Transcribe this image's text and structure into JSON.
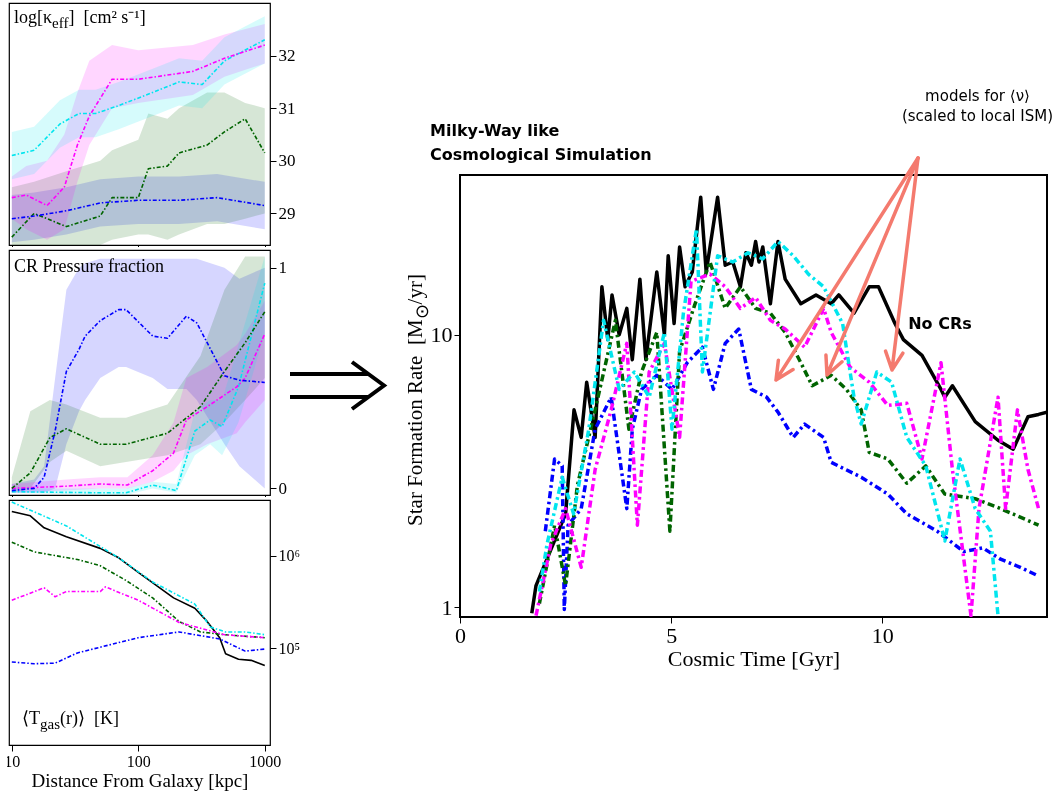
{
  "chart_data": [
    {
      "type": "line",
      "ylabel": "log[κ$_{eff}$]  [cm² s⁻¹]",
      "log": "x",
      "xlim": [
        9.5,
        1100
      ],
      "xticks": [
        10,
        100,
        1000
      ],
      "ylim": [
        28.4,
        33.0
      ],
      "yticks": [
        29,
        30,
        31,
        32
      ],
      "tick_labels": "y",
      "series": [
        {
          "color": "#00e5ee",
          "line_style": "dashed",
          "x": [
            10,
            15,
            24,
            34,
            46,
            70,
            130,
            210,
            320,
            480,
            1000
          ],
          "values": [
            30.1,
            30.2,
            30.7,
            30.9,
            30.9,
            31.05,
            31.3,
            31.5,
            31.45,
            31.9,
            32.3
          ],
          "lower": [
            29.65,
            29.75,
            30.25,
            30.45,
            30.45,
            30.6,
            30.85,
            31.05,
            31.0,
            31.45,
            31.85
          ],
          "upper": [
            30.55,
            30.65,
            31.15,
            31.35,
            31.35,
            31.5,
            31.75,
            31.95,
            31.9,
            32.35,
            32.75
          ]
        },
        {
          "color": "#ff00ff",
          "line_style": "dashed",
          "x": [
            10,
            13,
            19,
            26,
            33,
            41,
            62,
            100,
            270,
            480,
            1000
          ],
          "values": [
            29.3,
            29.35,
            29.15,
            29.5,
            30.3,
            30.85,
            31.55,
            31.55,
            31.7,
            31.95,
            32.2
          ],
          "lower": [
            28.9,
            28.7,
            28.5,
            28.7,
            29.6,
            30.3,
            31.0,
            31.1,
            31.25,
            31.6,
            31.85
          ],
          "upper": [
            29.7,
            29.9,
            30.0,
            30.5,
            31.3,
            31.9,
            32.2,
            32.1,
            32.2,
            32.4,
            32.6
          ]
        },
        {
          "color": "#006400",
          "line_style": "dashed",
          "x": [
            10,
            15,
            27,
            50,
            62,
            100,
            120,
            170,
            210,
            350,
            480,
            700,
            1000
          ],
          "values": [
            28.55,
            29.0,
            28.75,
            28.95,
            29.3,
            29.3,
            29.85,
            29.9,
            30.15,
            30.3,
            30.55,
            30.8,
            30.15
          ],
          "lower": [
            28.4,
            28.4,
            28.4,
            28.4,
            28.5,
            28.6,
            28.6,
            28.5,
            28.6,
            28.8,
            28.8,
            28.9,
            29.0
          ],
          "upper": [
            29.5,
            29.6,
            29.8,
            30.0,
            30.2,
            30.4,
            30.9,
            30.8,
            31.0,
            31.3,
            31.3,
            31.1,
            31.0
          ]
        },
        {
          "color": "#0000ff",
          "line_style": "dashed",
          "x": [
            10,
            15,
            27,
            50,
            100,
            210,
            420,
            1000
          ],
          "values": [
            28.9,
            28.95,
            29.05,
            29.2,
            29.25,
            29.25,
            29.3,
            29.15
          ],
          "lower": [
            28.45,
            28.5,
            28.6,
            28.75,
            28.8,
            28.8,
            28.85,
            28.7
          ],
          "upper": [
            29.35,
            29.4,
            29.5,
            29.65,
            29.7,
            29.7,
            29.75,
            29.6
          ]
        }
      ]
    },
    {
      "type": "line",
      "ylabel": "CR Pressure fraction",
      "log": "x",
      "xlim": [
        9.5,
        1100
      ],
      "xticks": [
        10,
        100,
        1000
      ],
      "ylim": [
        -0.03,
        1.08
      ],
      "yticks": [
        0,
        1
      ],
      "tick_labels": "y",
      "series": [
        {
          "color": "#00e5ee",
          "line_style": "dashed",
          "x": [
            10,
            50,
            80,
            130,
            200,
            280,
            370,
            460,
            620,
            1000
          ],
          "values": [
            -0.015,
            -0.02,
            -0.02,
            0.015,
            -0.01,
            0.26,
            0.31,
            0.28,
            0.46,
            0.93
          ],
          "lower": [
            -0.02,
            -0.03,
            -0.03,
            0,
            -0.02,
            0.15,
            0.2,
            0.15,
            0.3,
            0.7
          ],
          "upper": [
            0,
            0,
            0,
            0.03,
            0.02,
            0.35,
            0.4,
            0.4,
            0.65,
            1.05
          ]
        },
        {
          "color": "#ff00ff",
          "line_style": "dashed",
          "x": [
            10,
            27,
            50,
            82,
            130,
            190,
            240,
            350,
            600,
            700,
            1000
          ],
          "values": [
            0,
            0.01,
            0.02,
            0.015,
            0.08,
            0.16,
            0.31,
            0.37,
            0.46,
            0.5,
            0.7
          ],
          "lower": [
            -0.02,
            -0.01,
            0,
            0,
            0.03,
            0.08,
            0.15,
            0.2,
            0.25,
            0.3,
            0.4
          ],
          "upper": [
            0.02,
            0.04,
            0.05,
            0.05,
            0.15,
            0.3,
            0.5,
            0.55,
            0.65,
            0.7,
            0.85
          ]
        },
        {
          "color": "#006400",
          "line_style": "dashed",
          "x": [
            10,
            14,
            20,
            27,
            50,
            80,
            170,
            310,
            480,
            700,
            1000
          ],
          "values": [
            0,
            0.07,
            0.23,
            0.27,
            0.2,
            0.2,
            0.25,
            0.37,
            0.53,
            0.66,
            0.8
          ],
          "lower": [
            -0.02,
            0,
            0.12,
            0.17,
            0.1,
            0.12,
            0.15,
            0.2,
            0.3,
            0.4,
            0.5
          ],
          "upper": [
            0.05,
            0.35,
            0.4,
            0.38,
            0.32,
            0.32,
            0.38,
            0.6,
            0.9,
            1.05,
            1.05
          ]
        },
        {
          "color": "#0000ff",
          "line_style": "dashed",
          "x": [
            10,
            15,
            18,
            22,
            27,
            34,
            38,
            50,
            70,
            80,
            130,
            170,
            240,
            290,
            480,
            630,
            1000
          ],
          "values": [
            -0.01,
            0,
            0.05,
            0.26,
            0.53,
            0.63,
            0.69,
            0.76,
            0.81,
            0.81,
            0.69,
            0.68,
            0.78,
            0.75,
            0.51,
            0.49,
            0.48
          ],
          "lower": [
            -0.02,
            -0.02,
            -0.02,
            0.0,
            0.2,
            0.35,
            0.4,
            0.5,
            0.55,
            0.55,
            0.5,
            0.45,
            0.45,
            0.4,
            0.2,
            0.1,
            0.0
          ],
          "upper": [
            0.02,
            0.04,
            0.1,
            0.5,
            0.9,
            1.0,
            1.02,
            1.04,
            1.04,
            1.04,
            1.04,
            1.04,
            1.04,
            1.04,
            1.0,
            0.95,
            1.0
          ]
        }
      ]
    },
    {
      "type": "line",
      "xlabel": "Distance From Galaxy  [kpc]",
      "ylabel": "⟨T$_{gas}$(r)⟩  [K]",
      "log": "xy",
      "xlim": [
        9.5,
        1100
      ],
      "xticks": [
        10,
        100,
        1000
      ],
      "ylim": [
        9000,
        4000000
      ],
      "yticks": [
        {
          "value": 100000,
          "label": "10⁵"
        },
        {
          "value": 1000000,
          "label": "10⁶"
        }
      ],
      "series": [
        {
          "color": "#000000",
          "line_style": "solid",
          "x": [
            10,
            14,
            18,
            27,
            50,
            70,
            100,
            190,
            280,
            350,
            440,
            490,
            620,
            780,
            1000
          ],
          "values": [
            3000000,
            2700000,
            2000000,
            1600000,
            1200000,
            950000,
            660000,
            350000,
            270000,
            195000,
            130000,
            87000,
            76000,
            74000,
            65000
          ]
        },
        {
          "color": "#00e5ee",
          "line_style": "dashed",
          "x": [
            10,
            27,
            70,
            130,
            280,
            370,
            490,
            700,
            1000
          ],
          "values": [
            3800000,
            2100000,
            950000,
            520000,
            300000,
            170000,
            150000,
            150000,
            140000
          ]
        },
        {
          "color": "#006400",
          "line_style": "dashed",
          "x": [
            10,
            15,
            33,
            50,
            80,
            130,
            210,
            310,
            480,
            1000
          ],
          "values": [
            1400000,
            1100000,
            910000,
            780000,
            540000,
            350000,
            195000,
            150000,
            140000,
            130000
          ]
        },
        {
          "color": "#ff00ff",
          "line_style": "dashed",
          "x": [
            10,
            18,
            22,
            27,
            50,
            55,
            100,
            210,
            480,
            1000
          ],
          "values": [
            330000,
            450000,
            360000,
            410000,
            410000,
            460000,
            330000,
            190000,
            140000,
            130000
          ]
        },
        {
          "color": "#0000ff",
          "line_style": "dashed",
          "x": [
            10,
            15,
            22,
            33,
            100,
            210,
            440,
            700,
            1000
          ],
          "values": [
            71000,
            68000,
            69000,
            89000,
            130000,
            150000,
            126000,
            93000,
            98000
          ]
        }
      ]
    },
    {
      "type": "line",
      "title": "Milky-Way like",
      "subtitle": "Cosmological Simulation",
      "xlabel": "Cosmic Time [Gyr]",
      "ylabel": "Star Formation Rate  [M$_{⊙}$/yr]",
      "log": "y",
      "xlim": [
        0,
        13.9
      ],
      "xticks": [
        0,
        5,
        10
      ],
      "ylim": [
        0.92,
        38.6
      ],
      "yticks": [
        1,
        10
      ],
      "annotations": [
        "No CRs",
        "models for ⟨ν⟩ (scaled to local ISM)"
      ],
      "series": [
        {
          "color": "#000000",
          "line_style": "solid",
          "x": [
            1.7,
            1.8,
            2.5,
            2.7,
            2.87,
            3.0,
            3.2,
            3.36,
            3.5,
            3.6,
            3.77,
            3.95,
            4.08,
            4.26,
            4.4,
            4.66,
            4.84,
            4.93,
            5.07,
            5.2,
            5.33,
            5.5,
            5.7,
            5.83,
            6.1,
            6.28,
            6.46,
            6.64,
            6.77,
            6.9,
            7.0,
            7.08,
            7.17,
            7.35,
            7.53,
            7.7,
            8.07,
            8.43,
            8.79,
            8.97,
            9.33,
            9.69,
            9.91,
            10.3,
            10.5,
            10.94,
            11.39,
            11.48,
            11.66,
            12.2,
            12.74,
            13.1,
            13.45,
            13.7,
            13.9
          ],
          "values": [
            0.95,
            1.2,
            2.2,
            5.3,
            4.2,
            6.7,
            4.2,
            15,
            9.6,
            14,
            10,
            12.5,
            8.1,
            16,
            8.1,
            17,
            10,
            19.5,
            11,
            21,
            15,
            17,
            32,
            17,
            32,
            18,
            18.5,
            15,
            20,
            18,
            22,
            18.5,
            21,
            13,
            22,
            16,
            13,
            14,
            13,
            14,
            12,
            15,
            15,
            11,
            9.6,
            8.4,
            6.3,
            5.9,
            6.5,
            4.8,
            4.1,
            3.8,
            5.0,
            5.1,
            5.2
          ]
        },
        {
          "color": "#0000ff",
          "line_style": "dashed",
          "x": [
            2.02,
            2.24,
            2.42,
            2.47,
            2.56,
            2.87,
            3.2,
            3.58,
            3.95,
            4.08,
            4.3,
            4.66,
            5.02,
            5.38,
            5.74,
            6.0,
            6.28,
            6.6,
            6.9,
            7.26,
            7.53,
            7.89,
            8.16,
            8.61,
            8.79,
            9.5,
            10.13,
            10.58,
            11.3,
            11.93,
            12.38,
            12.8,
            13.27,
            13.7
          ],
          "values": [
            1.9,
            3.5,
            3.3,
            0.98,
            2.0,
            2.3,
            4.5,
            5.9,
            2.3,
            4.5,
            6.3,
            7.1,
            6.3,
            7.9,
            9.0,
            6.3,
            9.3,
            10.5,
            6.3,
            5.9,
            5.2,
            4.2,
            4.7,
            4.2,
            3.4,
            3.0,
            2.6,
            2.2,
            1.9,
            1.6,
            1.65,
            1.5,
            1.4,
            1.3
          ]
        },
        {
          "color": "#006400",
          "line_style": "dashed",
          "x": [
            1.88,
            2.24,
            2.5,
            2.78,
            3.2,
            3.68,
            4.0,
            4.3,
            4.66,
            4.97,
            5.2,
            5.56,
            5.92,
            6.28,
            6.64,
            7.0,
            7.35,
            7.7,
            8.07,
            8.34,
            8.79,
            9.15,
            9.5,
            9.69,
            10.13,
            10.58,
            11.03,
            11.48,
            12.2,
            12.8,
            13.7
          ],
          "values": [
            1.03,
            2.0,
            1.2,
            2.8,
            5.3,
            11.3,
            4.5,
            7.3,
            10.2,
            1.9,
            8.7,
            12.9,
            18.5,
            12.5,
            15,
            12.5,
            12,
            10.2,
            7.9,
            6.5,
            7.1,
            6.3,
            5.3,
            3.7,
            3.5,
            2.85,
            3.3,
            2.6,
            2.5,
            2.3,
            2.0
          ]
        },
        {
          "color": "#ff00ff",
          "line_style": "dashed",
          "x": [
            1.8,
            2.15,
            2.5,
            2.87,
            3.2,
            3.58,
            3.95,
            4.2,
            4.48,
            4.84,
            5.2,
            5.47,
            5.92,
            6.28,
            6.64,
            7.0,
            7.35,
            7.7,
            8.16,
            8.61,
            8.79,
            9.24,
            9.69,
            10.13,
            10.58,
            10.94,
            11.39,
            11.66,
            12.1,
            12.29,
            12.74,
            12.92,
            13.2,
            13.45,
            13.7
          ],
          "values": [
            0.93,
            1.7,
            2.3,
            1.4,
            3.2,
            5.3,
            9.3,
            2.0,
            7.3,
            9.3,
            4.2,
            15.7,
            16.7,
            15,
            12.5,
            13.7,
            11.3,
            10.5,
            9.0,
            12.5,
            10.2,
            7.6,
            6.7,
            5.5,
            5.6,
            3.5,
            7.9,
            3.2,
            0.93,
            2.3,
            5.9,
            2.3,
            5.3,
            3.2,
            2.3
          ]
        },
        {
          "color": "#00e5ee",
          "line_style": "dashed",
          "x": [
            1.88,
            2.06,
            2.42,
            2.69,
            3.05,
            3.4,
            3.77,
            4.13,
            4.48,
            4.84,
            5.02,
            5.29,
            5.6,
            5.74,
            6.1,
            6.46,
            6.82,
            7.17,
            7.53,
            7.89,
            8.25,
            8.61,
            9.06,
            9.33,
            9.5,
            9.87,
            10.22,
            10.58,
            11.03,
            11.48,
            11.84,
            12.2,
            12.56,
            12.74
          ],
          "values": [
            1.14,
            1.7,
            3.0,
            2.2,
            4.5,
            11.3,
            6.3,
            7.3,
            5.9,
            10.2,
            4.5,
            12,
            24.5,
            7.3,
            19.5,
            18.5,
            20,
            19,
            22,
            19.5,
            16.7,
            15,
            11,
            5.9,
            4.7,
            7.3,
            6.7,
            4.2,
            3.3,
            1.75,
            3.5,
            2.3,
            1.9,
            0.93
          ]
        }
      ]
    }
  ]
}
